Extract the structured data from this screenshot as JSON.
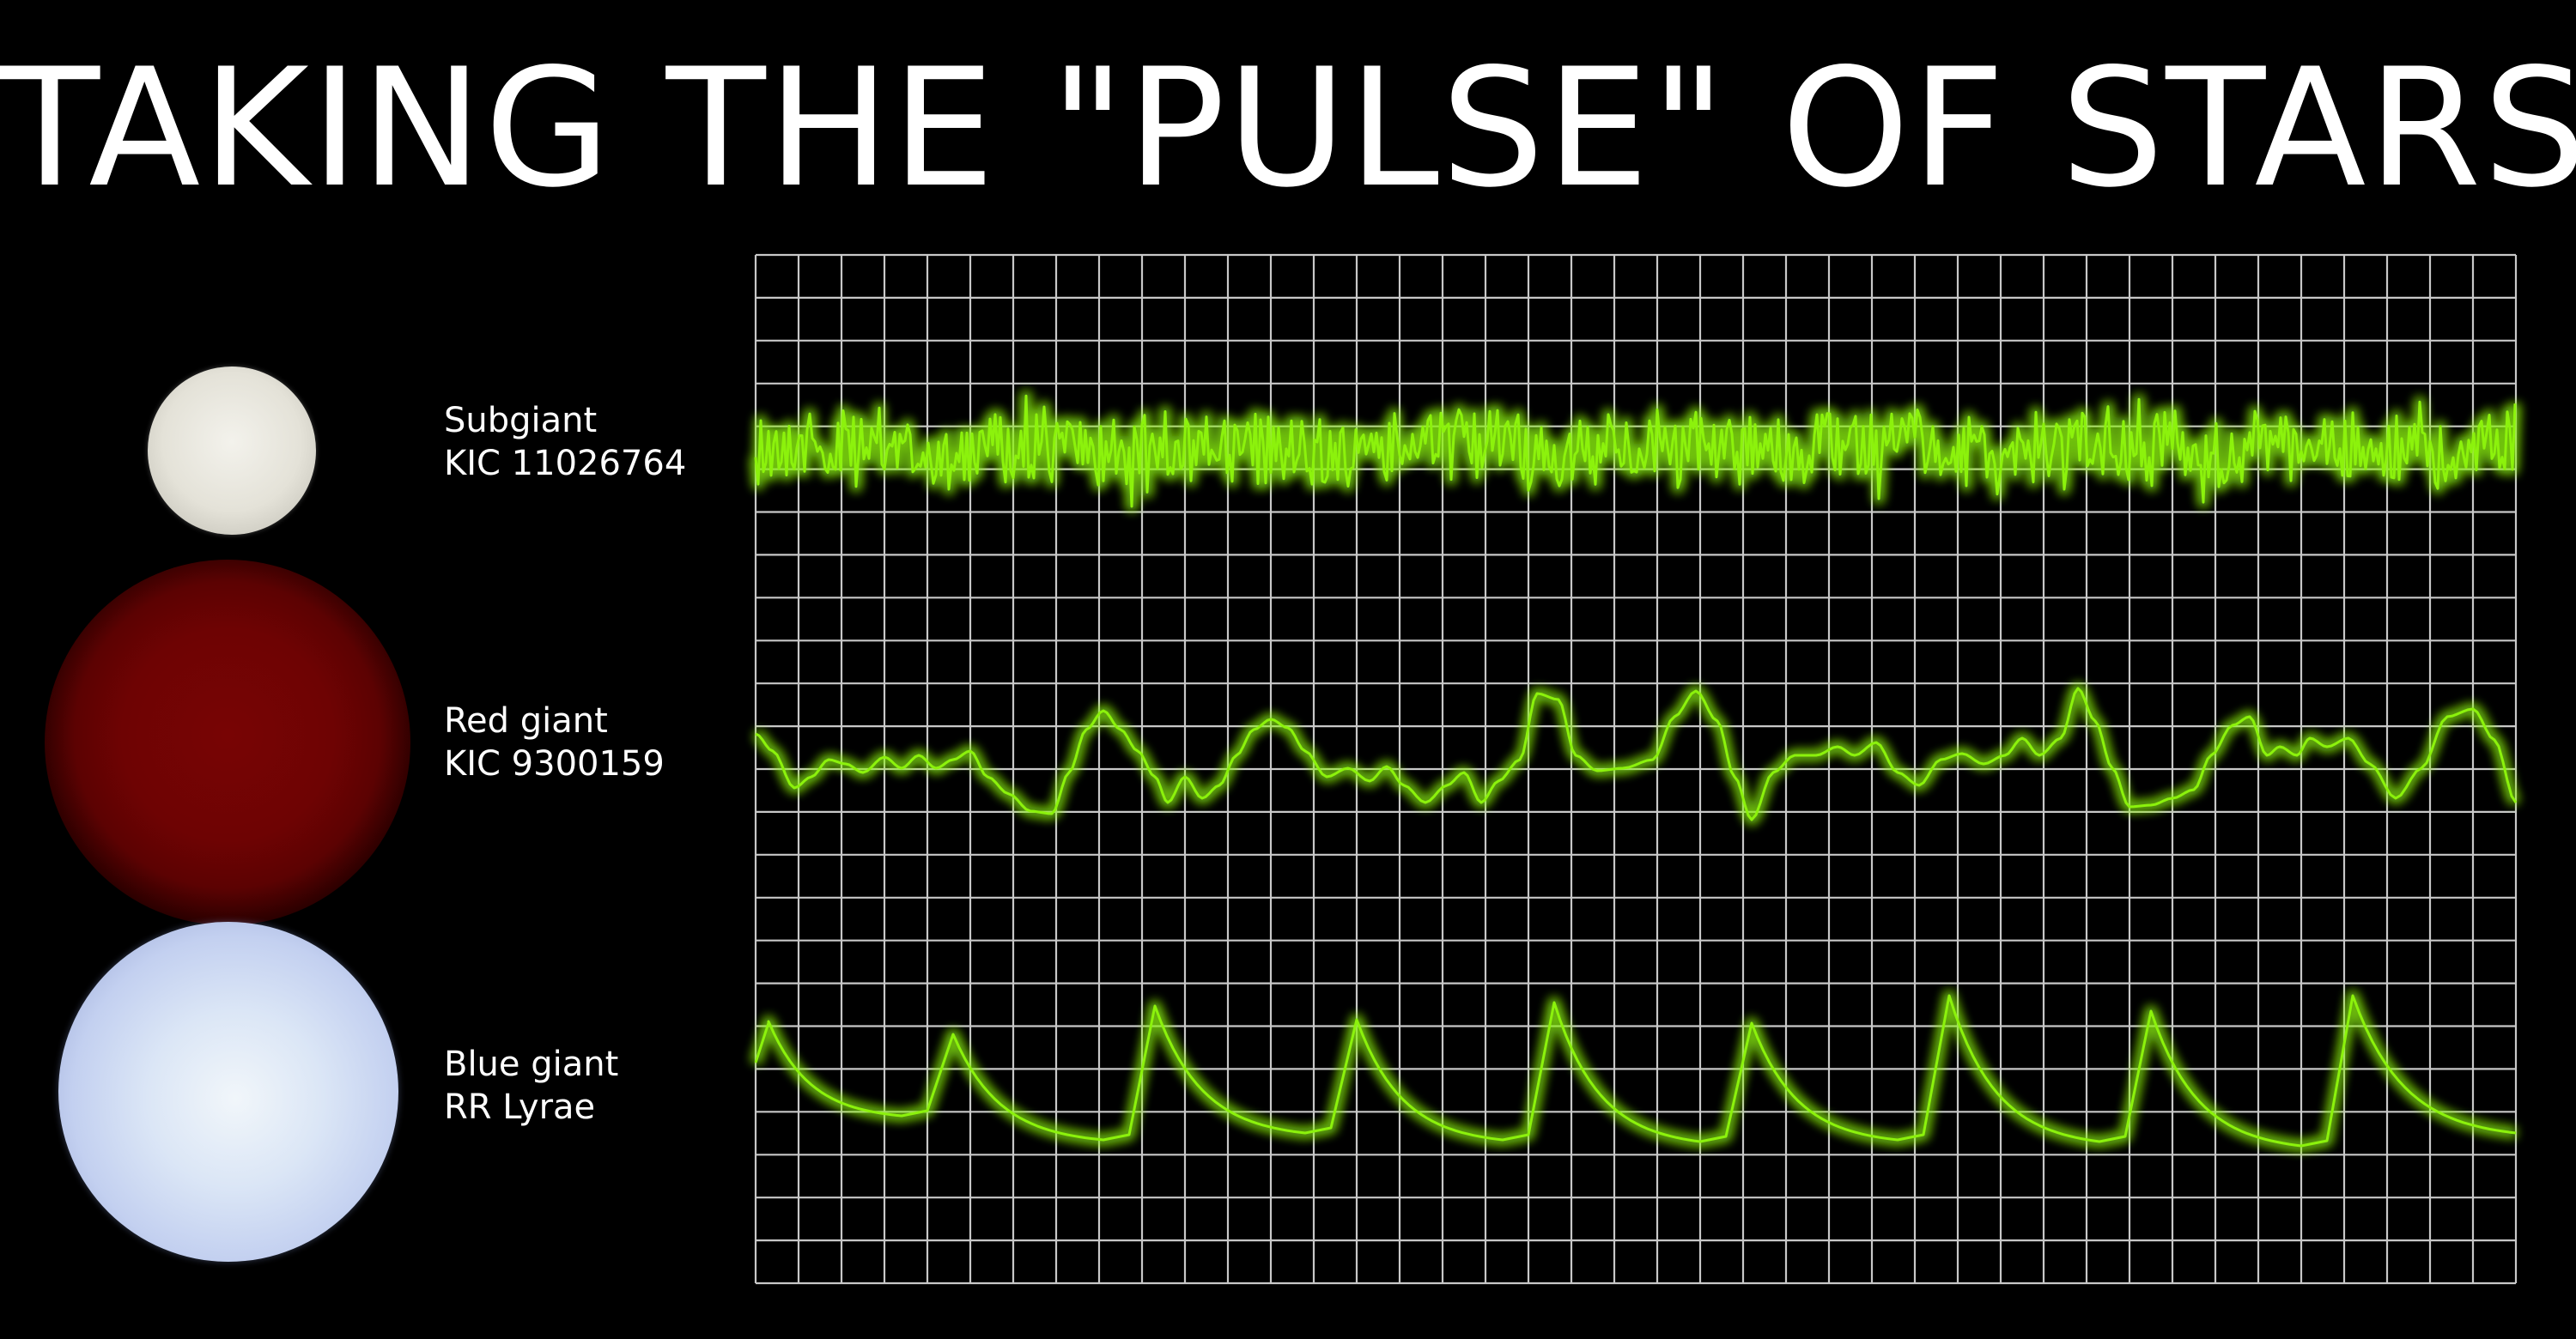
{
  "title": "TAKING THE \"PULSE\" OF STARS",
  "stars": [
    {
      "type": "Subgiant",
      "id": "KIC 11026764",
      "color": "#e6e4da"
    },
    {
      "type": "Red giant",
      "id": "KIC 9300159",
      "color": "#6e0303"
    },
    {
      "type": "Blue giant",
      "id": "RR Lyrae",
      "color": "#d4def4"
    }
  ],
  "trace_color": "#8cf20c",
  "grid_color": "#c8c8c8"
}
